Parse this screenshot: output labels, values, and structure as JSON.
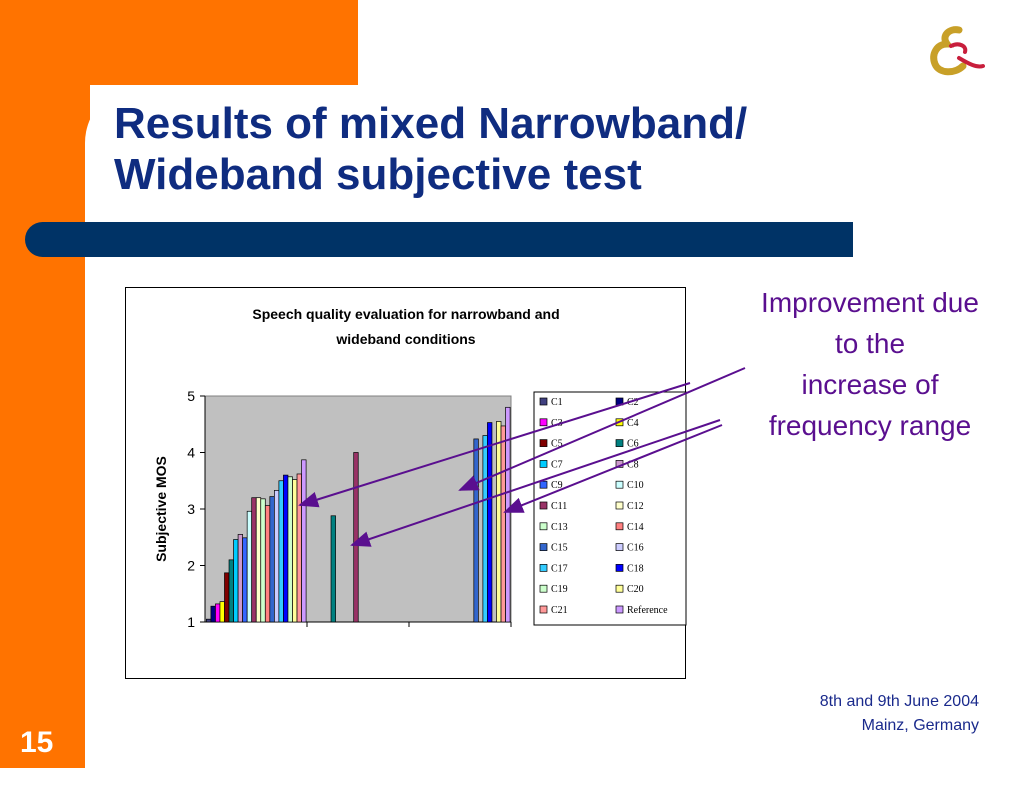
{
  "slide": {
    "title": "Results of mixed Narrowband/ Wideband subjective test",
    "callout": [
      "Improvement due",
      "to the",
      "increase of",
      "frequency range"
    ],
    "footer_line1": "8th and 9th June 2004",
    "footer_line2": "Mainz, Germany",
    "slide_number": "15",
    "colors": {
      "orange": "#ff7300",
      "navy": "#003366",
      "title": "#0f2c80",
      "callout": "#5a0f8f",
      "plot_bg": "#c0c0c0"
    }
  },
  "chart_data": {
    "type": "bar",
    "title": [
      "Speech quality evaluation for narrowband and",
      "wideband conditions"
    ],
    "ylabel": "Subjective MOS",
    "ylim": [
      1,
      5
    ],
    "yticks": [
      1,
      2,
      3,
      4,
      5
    ],
    "grid": false,
    "legend_position": "right",
    "series": [
      {
        "name": "C1",
        "color": "#404080",
        "values": [
          1.05,
          null,
          null
        ]
      },
      {
        "name": "C2",
        "color": "#000080",
        "values": [
          1.28,
          null,
          null
        ]
      },
      {
        "name": "C3",
        "color": "#ff00ff",
        "values": [
          1.32,
          null,
          null
        ]
      },
      {
        "name": "C4",
        "color": "#ffff00",
        "values": [
          1.36,
          null,
          null
        ]
      },
      {
        "name": "C5",
        "color": "#800000",
        "values": [
          1.87,
          null,
          null
        ]
      },
      {
        "name": "C6",
        "color": "#008080",
        "values": [
          2.1,
          2.88,
          null
        ]
      },
      {
        "name": "C7",
        "color": "#00ccff",
        "values": [
          2.46,
          null,
          null
        ]
      },
      {
        "name": "C8",
        "color": "#cc99cc",
        "values": [
          2.55,
          null,
          null
        ]
      },
      {
        "name": "C9",
        "color": "#3366ff",
        "values": [
          2.49,
          null,
          null
        ]
      },
      {
        "name": "C10",
        "color": "#ccffff",
        "values": [
          2.96,
          null,
          null
        ]
      },
      {
        "name": "C11",
        "color": "#993366",
        "values": [
          3.2,
          4.0,
          null
        ]
      },
      {
        "name": "C12",
        "color": "#ffffcc",
        "values": [
          3.2,
          null,
          null
        ]
      },
      {
        "name": "C13",
        "color": "#ccffcc",
        "values": [
          3.18,
          null,
          null
        ]
      },
      {
        "name": "C14",
        "color": "#ff8080",
        "values": [
          3.06,
          null,
          null
        ]
      },
      {
        "name": "C15",
        "color": "#3366cc",
        "values": [
          3.22,
          null,
          4.24
        ]
      },
      {
        "name": "C16",
        "color": "#ccccff",
        "values": [
          3.33,
          null,
          null
        ]
      },
      {
        "name": "C17",
        "color": "#33ccff",
        "values": [
          3.5,
          null,
          4.3
        ]
      },
      {
        "name": "C18",
        "color": "#0000ff",
        "values": [
          3.6,
          null,
          4.53
        ]
      },
      {
        "name": "C19",
        "color": "#ccffcc",
        "values": [
          3.57,
          null,
          null
        ]
      },
      {
        "name": "C20",
        "color": "#ffff99",
        "values": [
          3.52,
          null,
          4.55
        ]
      },
      {
        "name": "C21",
        "color": "#ff9999",
        "values": [
          3.62,
          null,
          4.47
        ]
      },
      {
        "name": "Reference",
        "color": "#cc99ff",
        "values": [
          3.87,
          null,
          4.8
        ]
      }
    ]
  }
}
